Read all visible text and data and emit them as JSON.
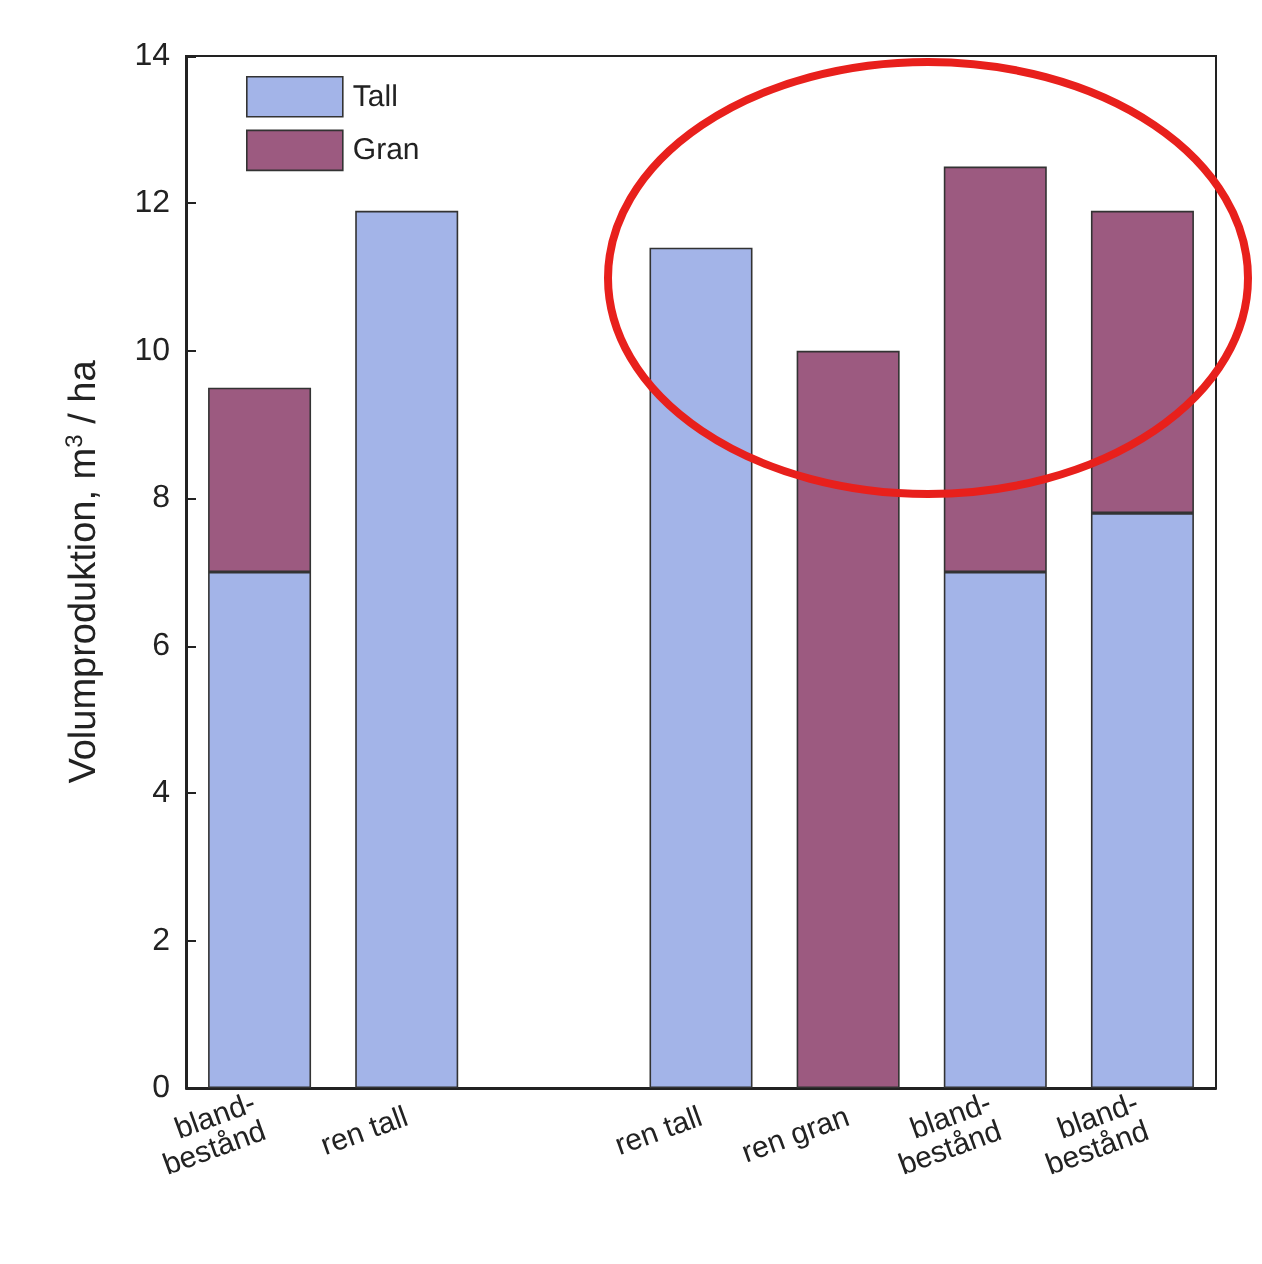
{
  "chart_data": {
    "type": "bar",
    "stacked": true,
    "ylabel": "Volumproduktion, m$^{3}$ / ha",
    "categories": [
      "bland-\nbestånd",
      "ren tall",
      null,
      "ren tall",
      "ren gran",
      "bland-\nbestånd",
      "bland-\nbestånd"
    ],
    "series": [
      {
        "name": "Tall",
        "color": "#a3b4e8",
        "values": [
          7,
          11.9,
          null,
          11.4,
          null,
          7,
          7.8
        ]
      },
      {
        "name": "Gran",
        "color": "#9c5a80",
        "values": [
          2.5,
          null,
          null,
          null,
          10,
          5.5,
          4.1
        ]
      }
    ],
    "ylim": [
      0,
      14
    ],
    "yticks": [
      0,
      2,
      4,
      6,
      8,
      10,
      12,
      14
    ],
    "grid": false,
    "legend": "top left"
  }
}
